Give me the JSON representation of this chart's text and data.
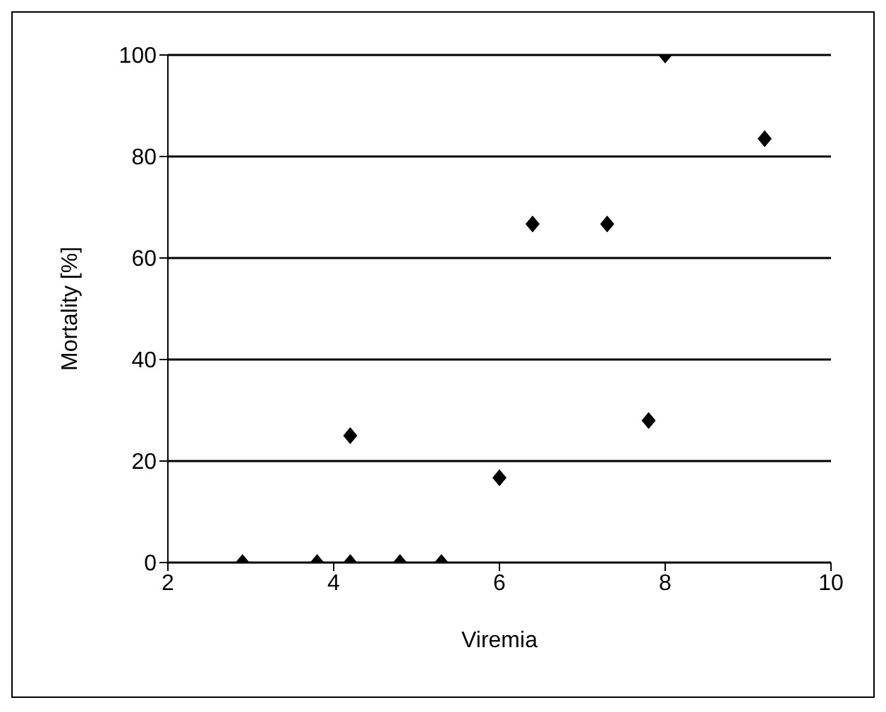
{
  "chart_data": {
    "type": "scatter",
    "xlabel": "Viremia",
    "ylabel": "Mortality [%]",
    "x": [
      2.9,
      3.8,
      4.2,
      4.2,
      4.8,
      5.3,
      6.0,
      6.4,
      7.3,
      7.8,
      8.0,
      9.2
    ],
    "values": [
      0,
      0,
      0,
      25,
      0,
      0,
      16.7,
      66.7,
      66.7,
      28,
      100,
      83.5
    ],
    "color": "#000000",
    "marker": "diamond",
    "xlim": [
      2,
      10
    ],
    "xticks": [
      2,
      4,
      6,
      8,
      10
    ],
    "ylim": [
      0,
      100
    ],
    "yticks": [
      0,
      20,
      40,
      60,
      80,
      100
    ],
    "grid": "y",
    "legend": false
  }
}
